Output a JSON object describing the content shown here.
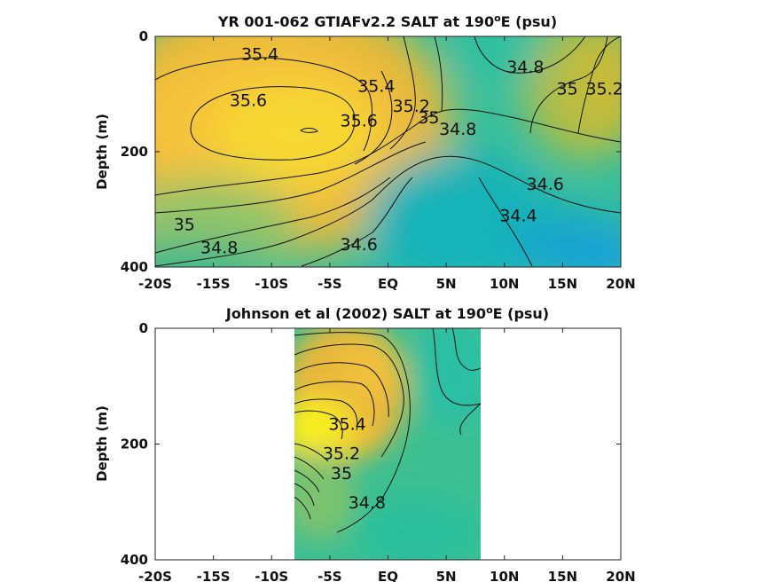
{
  "figure": {
    "top": {
      "title_text": "YR 001-062 GTIAFv2.2 SALT at 190",
      "title_sup": "o",
      "title_end": "E (psu)"
    },
    "bottom": {
      "title_text": "Johnson et al (2002) SALT at 190",
      "title_sup": "o",
      "title_end": "E (psu)"
    },
    "ylabel": "Depth (m)"
  },
  "chart_data": [
    {
      "type": "heatmap",
      "title": "YR 001-062 GTIAFv2.2 SALT at 190°E (psu)",
      "xlabel": "",
      "ylabel": "Depth (m)",
      "xlim": [
        -20,
        20
      ],
      "ylim": [
        400,
        0
      ],
      "x_ticks": [
        -20,
        -15,
        -10,
        -5,
        0,
        5,
        10,
        15,
        20
      ],
      "x_tick_labels": [
        "-20S",
        "-15S",
        "-10S",
        "-5S",
        "EQ",
        "5N",
        "10N",
        "15N",
        "20N"
      ],
      "y_ticks": [
        0,
        200,
        400
      ],
      "y_tick_labels": [
        "0",
        "200",
        "400"
      ],
      "colormap": "parula",
      "contour_labels": [
        {
          "label": "35.4",
          "x": -11,
          "y": 30
        },
        {
          "label": "35.6",
          "x": -12,
          "y": 110
        },
        {
          "label": "35.6",
          "x": -2.5,
          "y": 145
        },
        {
          "label": "35.4",
          "x": -1,
          "y": 85
        },
        {
          "label": "35.2",
          "x": 2,
          "y": 120
        },
        {
          "label": "35",
          "x": 3.5,
          "y": 140
        },
        {
          "label": "34.8",
          "x": 6,
          "y": 160
        },
        {
          "label": "34.8",
          "x": 11.8,
          "y": 52
        },
        {
          "label": "35",
          "x": 15.4,
          "y": 90
        },
        {
          "label": "35.2",
          "x": 18.6,
          "y": 90
        },
        {
          "label": "34.6",
          "x": 13.5,
          "y": 255
        },
        {
          "label": "34.4",
          "x": 11.2,
          "y": 310
        },
        {
          "label": "35",
          "x": -17.5,
          "y": 325
        },
        {
          "label": "34.8",
          "x": -14.5,
          "y": 365
        },
        {
          "label": "34.6",
          "x": -2.5,
          "y": 360
        }
      ]
    },
    {
      "type": "heatmap",
      "title": "Johnson et al (2002) SALT at 190°E (psu)",
      "xlabel": "",
      "ylabel": "Depth (m)",
      "xlim": [
        -20,
        20
      ],
      "ylim": [
        400,
        0
      ],
      "data_xrange": [
        -8,
        8
      ],
      "x_ticks": [
        -20,
        -15,
        -10,
        -5,
        0,
        5,
        10,
        15,
        20
      ],
      "x_tick_labels": [
        "-20S",
        "-15S",
        "-10S",
        "-5S",
        "EQ",
        "5N",
        "10N",
        "15N",
        "20N"
      ],
      "y_ticks": [
        0,
        200,
        400
      ],
      "y_tick_labels": [
        "0",
        "200",
        "400"
      ],
      "colormap": "parula",
      "contour_labels": [
        {
          "label": "35.4",
          "x": -3.5,
          "y": 165
        },
        {
          "label": "35.2",
          "x": -4,
          "y": 215
        },
        {
          "label": "35",
          "x": -4,
          "y": 250
        },
        {
          "label": "34.8",
          "x": -1.8,
          "y": 300
        }
      ]
    }
  ]
}
